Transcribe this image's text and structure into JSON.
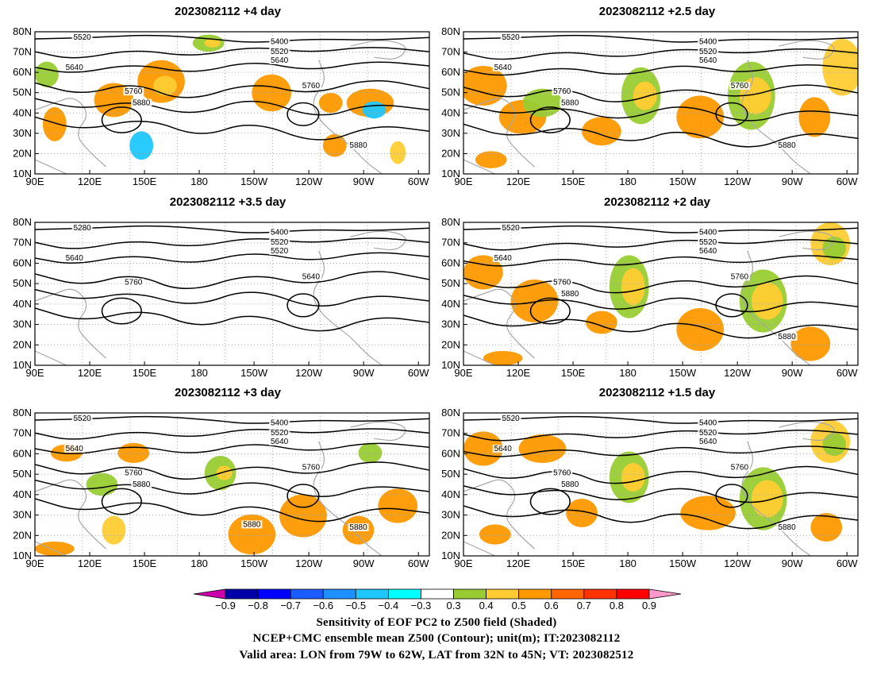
{
  "panels": [
    {
      "title": "2023082112  +4 day",
      "contours": [
        "5520",
        "5400",
        "5520",
        "5640",
        "5640",
        "5760",
        "5760",
        "5880",
        "5880"
      ]
    },
    {
      "title": "2023082112  +2.5 day",
      "contours": [
        "5520",
        "5400",
        "5520",
        "5640",
        "5640",
        "5760",
        "5760",
        "5880",
        "5880"
      ]
    },
    {
      "title": "2023082112  +3.5 day",
      "contours": [
        "5280",
        "5400",
        "5520",
        "5520",
        "5640",
        "5640",
        "5760"
      ]
    },
    {
      "title": "2023082112  +2 day",
      "contours": [
        "5520",
        "5400",
        "5520",
        "5640",
        "5640",
        "5760",
        "5760",
        "5880",
        "5880"
      ]
    },
    {
      "title": "2023082112  +3 day",
      "contours": [
        "5520",
        "5400",
        "5520",
        "5640",
        "5640",
        "5760",
        "5760",
        "5880",
        "5880",
        "5880"
      ]
    },
    {
      "title": "2023082112  +1.5 day",
      "contours": [
        "5520",
        "5400",
        "5520",
        "5640",
        "5640",
        "5760",
        "5760",
        "5880",
        "5880"
      ]
    }
  ],
  "axes": {
    "lat_labels": [
      "80N",
      "70N",
      "60N",
      "50N",
      "40N",
      "30N",
      "20N",
      "10N"
    ],
    "lon_labels": [
      "90E",
      "120E",
      "150E",
      "180",
      "150W",
      "120W",
      "90W",
      "60W"
    ]
  },
  "colorbar": {
    "ticks": [
      "−0.9",
      "−0.8",
      "−0.7",
      "−0.6",
      "−0.5",
      "−0.4",
      "−0.3",
      "0.3",
      "0.4",
      "0.5",
      "0.6",
      "0.7",
      "0.8",
      "0.9"
    ],
    "colors": [
      "#cc00aa",
      "#0000a8",
      "#0000ff",
      "#1a5cff",
      "#1e90ff",
      "#1ec8ff",
      "#00ffff",
      "#ffffff",
      "#99cc33",
      "#ffcc33",
      "#ff9900",
      "#ff6600",
      "#ff3300",
      "#ff0000",
      "#ff99cc"
    ]
  },
  "footer": {
    "line1": "Sensitivity of EOF PC2 to Z500 field (Shaded)",
    "line2": "NCEP+CMC ensemble mean Z500 (Contour); unit(m); IT:2023082112",
    "line3": "Valid area: LON from 79W to 62W, LAT from 32N to 45N; VT: 2023082512"
  }
}
